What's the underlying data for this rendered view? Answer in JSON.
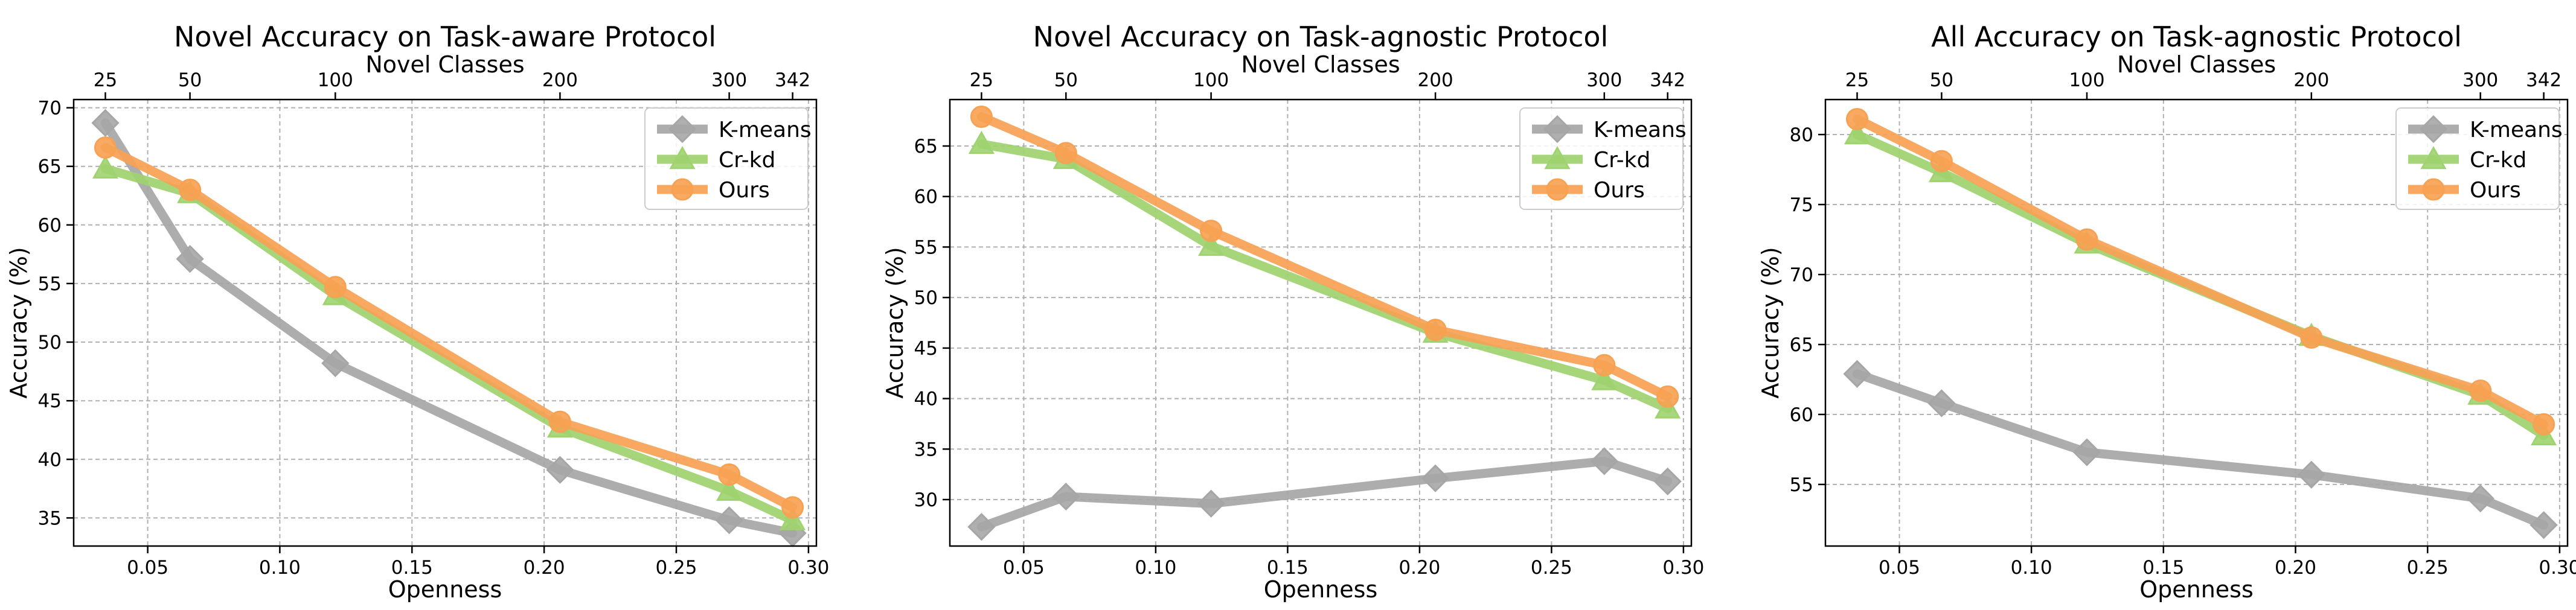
{
  "chart_data": [
    {
      "type": "line",
      "title": "Novel Accuracy on Task-aware Protocol",
      "xlabel": "Openness",
      "ylabel": "Accuracy (%)",
      "top_xlabel": "Novel Classes",
      "x": [
        0.034,
        0.066,
        0.121,
        0.206,
        0.27,
        0.294
      ],
      "top_ticks": [
        "25",
        "50",
        "100",
        "200",
        "300",
        "342"
      ],
      "xticks": [
        0.05,
        0.1,
        0.15,
        0.2,
        0.25,
        0.3
      ],
      "xtick_labels": [
        "0.05",
        "0.10",
        "0.15",
        "0.20",
        "0.25",
        "0.30"
      ],
      "xlim": [
        0.022,
        0.303
      ],
      "yticks": [
        35,
        40,
        45,
        50,
        55,
        60,
        65,
        70
      ],
      "ylim": [
        32.6,
        70.7
      ],
      "grid": true,
      "legend_position": "top-right",
      "series": [
        {
          "name": "K-means",
          "values": [
            68.7,
            57.1,
            48.2,
            39.1,
            34.8,
            33.7
          ]
        },
        {
          "name": "Cr-kd",
          "values": [
            64.8,
            62.7,
            54.0,
            42.7,
            37.3,
            34.8
          ]
        },
        {
          "name": "Ours",
          "values": [
            66.6,
            63.0,
            54.7,
            43.2,
            38.7,
            35.9
          ]
        }
      ]
    },
    {
      "type": "line",
      "title": "Novel Accuracy on Task-agnostic Protocol",
      "xlabel": "Openness",
      "ylabel": "Accuracy (%)",
      "top_xlabel": "Novel Classes",
      "x": [
        0.034,
        0.066,
        0.121,
        0.206,
        0.27,
        0.294
      ],
      "top_ticks": [
        "25",
        "50",
        "100",
        "200",
        "300",
        "342"
      ],
      "xticks": [
        0.05,
        0.1,
        0.15,
        0.2,
        0.25,
        0.3
      ],
      "xtick_labels": [
        "0.05",
        "0.10",
        "0.15",
        "0.20",
        "0.25",
        "0.30"
      ],
      "xlim": [
        0.022,
        0.303
      ],
      "yticks": [
        30,
        35,
        40,
        45,
        50,
        55,
        60,
        65
      ],
      "ylim": [
        25.4,
        69.6
      ],
      "grid": true,
      "legend_position": "top-right",
      "series": [
        {
          "name": "K-means",
          "values": [
            27.3,
            30.3,
            29.6,
            32.1,
            33.8,
            31.8
          ]
        },
        {
          "name": "Cr-kd",
          "values": [
            65.2,
            63.7,
            55.1,
            46.5,
            41.8,
            39.0
          ]
        },
        {
          "name": "Ours",
          "values": [
            67.9,
            64.3,
            56.6,
            46.8,
            43.3,
            40.2
          ]
        }
      ]
    },
    {
      "type": "line",
      "title": "All Accuracy on Task-agnostic Protocol",
      "xlabel": "Openness",
      "ylabel": "Accuracy (%)",
      "top_xlabel": "Novel Classes",
      "x": [
        0.034,
        0.066,
        0.121,
        0.206,
        0.27,
        0.294
      ],
      "top_ticks": [
        "25",
        "50",
        "100",
        "200",
        "300",
        "342"
      ],
      "xticks": [
        0.05,
        0.1,
        0.15,
        0.2,
        0.25,
        0.3
      ],
      "xtick_labels": [
        "0.05",
        "0.10",
        "0.15",
        "0.20",
        "0.25",
        "0.30"
      ],
      "xlim": [
        0.022,
        0.303
      ],
      "yticks": [
        55,
        60,
        65,
        70,
        75,
        80
      ],
      "ylim": [
        50.6,
        82.5
      ],
      "grid": true,
      "legend_position": "top-right",
      "series": [
        {
          "name": "K-means",
          "values": [
            62.9,
            60.8,
            57.3,
            55.7,
            54.0,
            52.1
          ]
        },
        {
          "name": "Cr-kd",
          "values": [
            80.0,
            77.3,
            72.2,
            65.6,
            61.4,
            58.5
          ]
        },
        {
          "name": "Ours",
          "values": [
            81.1,
            78.1,
            72.5,
            65.5,
            61.7,
            59.3
          ]
        }
      ]
    }
  ],
  "series_styles": [
    {
      "name": "K-means",
      "color": "#a6a6a6",
      "marker": "diamond"
    },
    {
      "name": "Cr-kd",
      "color": "#9fd36f",
      "marker": "triangle"
    },
    {
      "name": "Ours",
      "color": "#f7a152",
      "marker": "circle"
    }
  ]
}
